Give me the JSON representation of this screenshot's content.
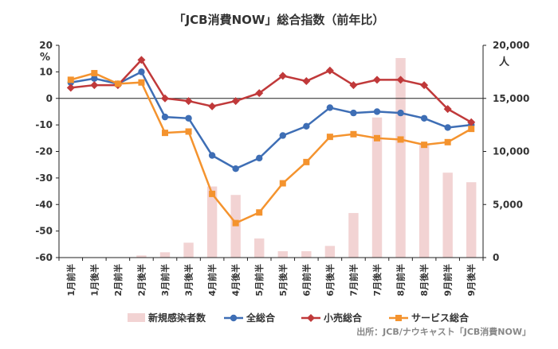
{
  "chart_data": {
    "type": "bar+line",
    "title": "「JCB消費NOW」総合指数（前年比）",
    "y_left_unit": "%",
    "y_right_unit": "人",
    "y_left_range": [
      -60,
      20
    ],
    "y_left_ticks": [
      "20",
      "10",
      "0",
      "-10",
      "-20",
      "-30",
      "-40",
      "-50",
      "-60"
    ],
    "y_right_range": [
      0,
      20000
    ],
    "y_right_ticks": [
      "20,000",
      "15,000",
      "10,000",
      "5,000",
      "0"
    ],
    "categories": [
      "1月前半",
      "1月後半",
      "2月前半",
      "2月後半",
      "3月前半",
      "3月後半",
      "4月前半",
      "4月後半",
      "5月前半",
      "5月後半",
      "6月前半",
      "6月後半",
      "7月前半",
      "7月後半",
      "8月前半",
      "8月後半",
      "9月前半",
      "9月後半"
    ],
    "bars": {
      "name": "新規感染者数",
      "color": "#f2d3d3",
      "values": [
        0,
        0,
        0,
        200,
        500,
        1400,
        6700,
        5900,
        1800,
        600,
        600,
        1100,
        4200,
        13200,
        18800,
        10600,
        8000,
        7100
      ]
    },
    "series": [
      {
        "name": "全総合",
        "color": "#3e6eb5",
        "values": [
          6,
          7.5,
          5.5,
          10,
          -7,
          -7.5,
          -21.5,
          -26.5,
          -22.5,
          -14,
          -10.5,
          -3.5,
          -5.5,
          -5,
          -5.5,
          -7.5,
          -11,
          -10
        ]
      },
      {
        "name": "小売総合",
        "color": "#c0393a",
        "values": [
          4,
          5,
          5,
          14.5,
          0,
          -1,
          -3,
          -1,
          2,
          8.5,
          6.5,
          10.5,
          5,
          7,
          7,
          5,
          -4,
          -9
        ]
      },
      {
        "name": "サービス総合",
        "color": "#f4932e",
        "values": [
          7,
          9.5,
          5.5,
          6,
          -13,
          -12.5,
          -36,
          -47,
          -43,
          -32,
          -24,
          -14.5,
          -13.5,
          -15,
          -15.5,
          -17.5,
          -16.5,
          -11.5
        ]
      }
    ],
    "source": "出所：JCB/ナウキャスト「JCB消費NOW」"
  }
}
